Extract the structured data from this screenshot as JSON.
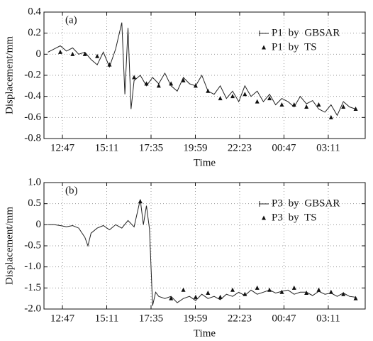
{
  "chart_data": [
    {
      "type": "line",
      "annotation": "(a)",
      "x_label": "Time",
      "y_label": "Displacement/mm",
      "xlim": [
        "11:47",
        "05:11"
      ],
      "xticks": [
        "12:47",
        "15:11",
        "17:35",
        "19:59",
        "22:23",
        "00:47",
        "03:11"
      ],
      "ylim": [
        -0.8,
        0.4
      ],
      "yticks": [
        -0.8,
        -0.6,
        -0.4,
        -0.2,
        0,
        0.2,
        0.4
      ],
      "grid": true,
      "legend": "upper right",
      "series": [
        {
          "name": "P1 by GBSAR",
          "type": "line",
          "color": "#222",
          "x": [
            "12:00",
            "12:20",
            "12:40",
            "13:00",
            "13:20",
            "13:40",
            "14:00",
            "14:20",
            "14:40",
            "15:00",
            "15:20",
            "15:40",
            "16:00",
            "16:10",
            "16:20",
            "16:30",
            "16:40",
            "17:00",
            "17:20",
            "17:40",
            "18:00",
            "18:20",
            "18:40",
            "19:00",
            "19:20",
            "19:40",
            "20:00",
            "20:20",
            "20:40",
            "21:00",
            "21:20",
            "21:40",
            "22:00",
            "22:20",
            "22:40",
            "23:00",
            "23:20",
            "23:40",
            "00:00",
            "00:20",
            "00:40",
            "01:00",
            "01:20",
            "01:40",
            "02:00",
            "02:20",
            "02:40",
            "03:00",
            "03:20",
            "03:40",
            "04:00",
            "04:20",
            "04:40"
          ],
          "values": [
            0.02,
            0.05,
            0.08,
            0.03,
            0.06,
            0.0,
            0.02,
            -0.05,
            -0.1,
            0.02,
            -0.12,
            0.05,
            0.3,
            -0.38,
            0.25,
            -0.52,
            -0.25,
            -0.2,
            -0.3,
            -0.22,
            -0.28,
            -0.18,
            -0.3,
            -0.35,
            -0.22,
            -0.28,
            -0.3,
            -0.2,
            -0.35,
            -0.38,
            -0.3,
            -0.42,
            -0.35,
            -0.45,
            -0.3,
            -0.4,
            -0.35,
            -0.45,
            -0.38,
            -0.48,
            -0.42,
            -0.45,
            -0.5,
            -0.4,
            -0.47,
            -0.44,
            -0.52,
            -0.55,
            -0.48,
            -0.58,
            -0.45,
            -0.5,
            -0.52
          ]
        },
        {
          "name": "P1 by TS",
          "type": "scatter",
          "color": "#111",
          "x": [
            "12:40",
            "13:20",
            "14:00",
            "14:40",
            "15:20",
            "16:40",
            "17:20",
            "18:00",
            "18:40",
            "19:20",
            "20:00",
            "20:40",
            "21:20",
            "22:00",
            "22:40",
            "23:20",
            "00:00",
            "00:40",
            "01:20",
            "02:00",
            "02:40",
            "03:20",
            "04:00",
            "04:40"
          ],
          "values": [
            0.02,
            0.0,
            0.0,
            -0.02,
            -0.1,
            -0.22,
            -0.28,
            -0.3,
            -0.28,
            -0.25,
            -0.3,
            -0.35,
            -0.42,
            -0.4,
            -0.38,
            -0.45,
            -0.42,
            -0.48,
            -0.48,
            -0.5,
            -0.48,
            -0.6,
            -0.5,
            -0.52
          ]
        }
      ]
    },
    {
      "type": "line",
      "annotation": "(b)",
      "x_label": "Time",
      "y_label": "Displacement/mm",
      "xlim": [
        "11:47",
        "05:11"
      ],
      "xticks": [
        "12:47",
        "15:11",
        "17:35",
        "19:59",
        "22:23",
        "00:47",
        "03:11"
      ],
      "ylim": [
        -2,
        1
      ],
      "yticks": [
        {
          "value": -2,
          "label": "-2.0"
        },
        {
          "value": -1.5,
          "label": "-1.5"
        },
        {
          "value": -1,
          "label": "-1.0"
        },
        {
          "value": -0.5,
          "label": "-0.5"
        },
        0,
        {
          "value": 0.5,
          "label": "0.5"
        },
        {
          "value": 1,
          "label": "1.0"
        }
      ],
      "grid": true,
      "legend": "upper right",
      "series": [
        {
          "name": "P3 by GBSAR",
          "type": "line",
          "color": "#222",
          "x": [
            "12:00",
            "12:20",
            "12:40",
            "13:00",
            "13:20",
            "13:40",
            "14:00",
            "14:10",
            "14:20",
            "14:40",
            "15:00",
            "15:20",
            "15:40",
            "16:00",
            "16:20",
            "16:40",
            "17:00",
            "17:10",
            "17:20",
            "17:30",
            "17:40",
            "17:50",
            "18:00",
            "18:20",
            "18:40",
            "19:00",
            "19:20",
            "19:40",
            "20:00",
            "20:20",
            "20:40",
            "21:00",
            "21:20",
            "21:40",
            "22:00",
            "22:20",
            "22:40",
            "23:00",
            "23:20",
            "23:40",
            "00:00",
            "00:20",
            "00:40",
            "01:00",
            "01:20",
            "01:40",
            "02:00",
            "02:20",
            "02:40",
            "03:00",
            "03:20",
            "03:40",
            "04:00",
            "04:20",
            "04:40"
          ],
          "values": [
            0.0,
            0.0,
            -0.02,
            -0.05,
            -0.02,
            -0.08,
            -0.3,
            -0.5,
            -0.2,
            -0.08,
            -0.02,
            -0.12,
            0.0,
            -0.08,
            0.1,
            -0.05,
            0.6,
            0.0,
            0.45,
            -0.1,
            -1.92,
            -1.6,
            -1.7,
            -1.75,
            -1.7,
            -1.85,
            -1.75,
            -1.7,
            -1.8,
            -1.65,
            -1.75,
            -1.7,
            -1.78,
            -1.65,
            -1.7,
            -1.6,
            -1.68,
            -1.55,
            -1.65,
            -1.6,
            -1.55,
            -1.62,
            -1.58,
            -1.55,
            -1.65,
            -1.6,
            -1.6,
            -1.68,
            -1.58,
            -1.65,
            -1.62,
            -1.7,
            -1.62,
            -1.7,
            -1.72
          ]
        },
        {
          "name": "P3 by TS",
          "type": "scatter",
          "color": "#111",
          "x": [
            "17:00",
            "18:40",
            "19:20",
            "20:00",
            "20:40",
            "21:20",
            "22:00",
            "22:40",
            "23:20",
            "00:00",
            "00:40",
            "01:20",
            "02:00",
            "02:40",
            "03:20",
            "04:00",
            "04:40"
          ],
          "values": [
            0.55,
            -1.75,
            -1.55,
            -1.72,
            -1.62,
            -1.72,
            -1.55,
            -1.65,
            -1.5,
            -1.55,
            -1.6,
            -1.5,
            -1.62,
            -1.55,
            -1.6,
            -1.65,
            -1.75
          ]
        }
      ]
    }
  ]
}
